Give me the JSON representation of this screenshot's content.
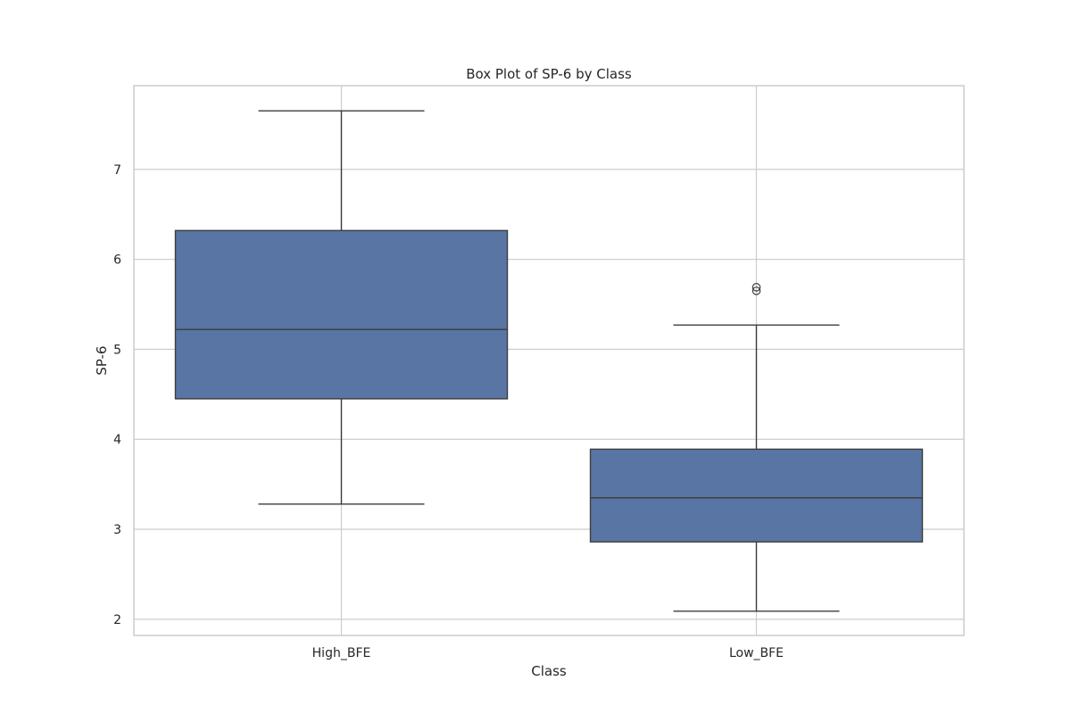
{
  "chart_data": {
    "type": "box",
    "title": "Box Plot of SP-6 by Class",
    "xlabel": "Class",
    "ylabel": "SP-6",
    "ylim": [
      1.82,
      7.93
    ],
    "yticks": [
      2,
      3,
      4,
      5,
      6,
      7
    ],
    "ytick_labels": [
      "2",
      "3",
      "4",
      "5",
      "6",
      "7"
    ],
    "categories": [
      "High_BFE",
      "Low_BFE"
    ],
    "grid": true,
    "box_color": "#5875a4",
    "edge_color": "#3d3d3d",
    "grid_color": "#cccccc",
    "boxes": [
      {
        "category": "High_BFE",
        "whisker_low": 3.28,
        "q1": 4.45,
        "median": 5.22,
        "q3": 6.32,
        "whisker_high": 7.65,
        "outliers": []
      },
      {
        "category": "Low_BFE",
        "whisker_low": 2.09,
        "q1": 2.86,
        "median": 3.35,
        "q3": 3.89,
        "whisker_high": 5.27,
        "outliers": [
          5.65,
          5.69
        ]
      }
    ]
  }
}
